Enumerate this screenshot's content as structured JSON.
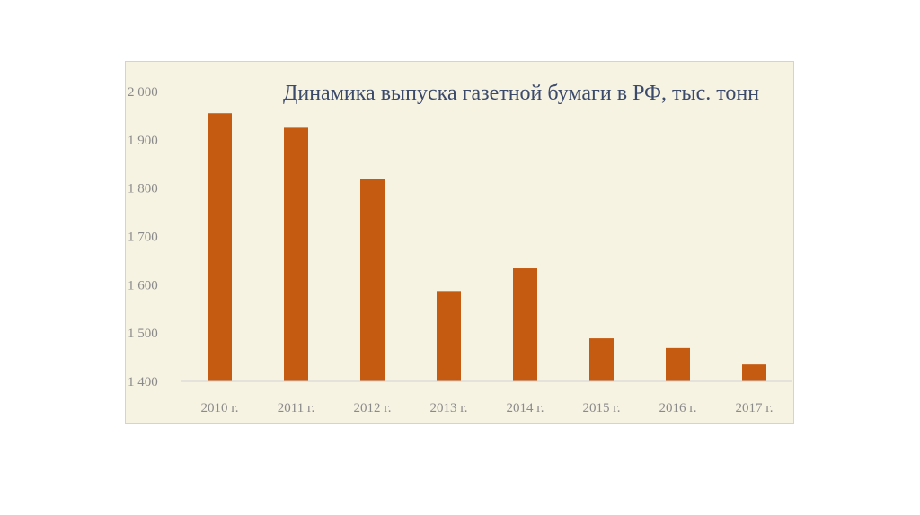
{
  "chart_data": {
    "type": "bar",
    "title": "Динамика выпуска газетной бумаги в РФ, тыс. тонн",
    "categories": [
      "2010 г.",
      "2011 г.",
      "2012 г.",
      "2013 г.",
      "2014 г.",
      "2015 г.",
      "2016 г.",
      "2017 г."
    ],
    "values": [
      1955,
      1925,
      1818,
      1587,
      1634,
      1489,
      1469,
      1435
    ],
    "ylim": [
      1400,
      2000
    ],
    "yticks": [
      1400,
      1500,
      1600,
      1700,
      1800,
      1900,
      2000
    ],
    "ytick_labels": [
      "1 400",
      "1 500",
      "1 600",
      "1 700",
      "1 800",
      "1 900",
      "2 000"
    ],
    "grid": false,
    "bar_color": "#c55a11",
    "background_color": "#f7f3e3"
  }
}
